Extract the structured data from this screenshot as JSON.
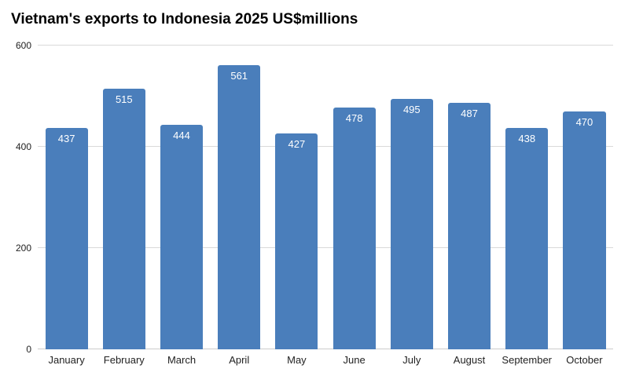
{
  "chart_data": {
    "type": "bar",
    "title": "Vietnam's exports to Indonesia 2025 US$millions",
    "categories": [
      "January",
      "February",
      "March",
      "April",
      "May",
      "June",
      "July",
      "August",
      "September",
      "October"
    ],
    "values": [
      437,
      515,
      444,
      561,
      427,
      478,
      495,
      487,
      438,
      470
    ],
    "xlabel": "",
    "ylabel": "",
    "ylim": [
      0,
      600
    ],
    "yticks": [
      0,
      200,
      400,
      600
    ],
    "grid": true,
    "legend": "none",
    "bar_color": "#4a7ebb",
    "value_label_color": "#ffffff",
    "gridline_color": "#d9d9d9",
    "tick_label_color": "#222222"
  }
}
